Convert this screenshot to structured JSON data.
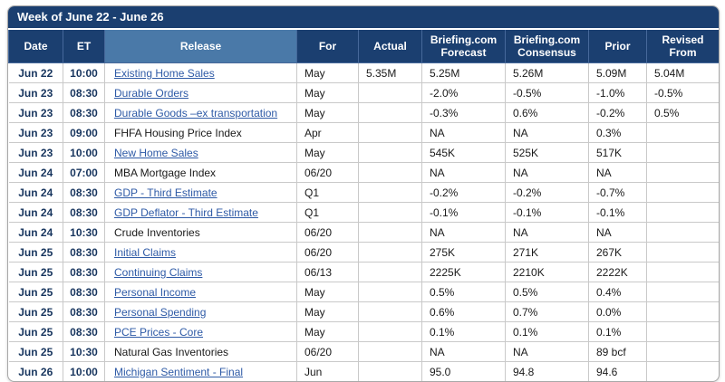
{
  "header": {
    "title": "Week of June 22 - June 26"
  },
  "columns": [
    "Date",
    "ET",
    "Release",
    "For",
    "Actual",
    "Briefing.com Forecast",
    "Briefing.com Consensus",
    "Prior",
    "Revised From"
  ],
  "rows": [
    {
      "date": "Jun 22",
      "et": "10:00",
      "release": "Existing Home Sales",
      "is_link": true,
      "for": "May",
      "actual": "5.35M",
      "forecast": "5.25M",
      "consensus": "5.26M",
      "prior": "5.09M",
      "revised_from": "5.04M"
    },
    {
      "date": "Jun 23",
      "et": "08:30",
      "release": "Durable Orders",
      "is_link": true,
      "for": "May",
      "actual": "",
      "forecast": "-2.0%",
      "consensus": "-0.5%",
      "prior": "-1.0%",
      "revised_from": "-0.5%"
    },
    {
      "date": "Jun 23",
      "et": "08:30",
      "release": "Durable Goods –ex transportation",
      "is_link": true,
      "for": "May",
      "actual": "",
      "forecast": "-0.3%",
      "consensus": "0.6%",
      "prior": "-0.2%",
      "revised_from": "0.5%"
    },
    {
      "date": "Jun 23",
      "et": "09:00",
      "release": "FHFA Housing Price Index",
      "is_link": false,
      "for": "Apr",
      "actual": "",
      "forecast": "NA",
      "consensus": "NA",
      "prior": "0.3%",
      "revised_from": ""
    },
    {
      "date": "Jun 23",
      "et": "10:00",
      "release": "New Home Sales",
      "is_link": true,
      "for": "May",
      "actual": "",
      "forecast": "545K",
      "consensus": "525K",
      "prior": "517K",
      "revised_from": ""
    },
    {
      "date": "Jun 24",
      "et": "07:00",
      "release": "MBA Mortgage Index",
      "is_link": false,
      "for": "06/20",
      "actual": "",
      "forecast": "NA",
      "consensus": "NA",
      "prior": "NA",
      "revised_from": ""
    },
    {
      "date": "Jun 24",
      "et": "08:30",
      "release": "GDP - Third Estimate",
      "is_link": true,
      "for": "Q1",
      "actual": "",
      "forecast": "-0.2%",
      "consensus": "-0.2%",
      "prior": "-0.7%",
      "revised_from": ""
    },
    {
      "date": "Jun 24",
      "et": "08:30",
      "release": "GDP Deflator - Third Estimate",
      "is_link": true,
      "for": "Q1",
      "actual": "",
      "forecast": "-0.1%",
      "consensus": "-0.1%",
      "prior": "-0.1%",
      "revised_from": ""
    },
    {
      "date": "Jun 24",
      "et": "10:30",
      "release": "Crude Inventories",
      "is_link": false,
      "for": "06/20",
      "actual": "",
      "forecast": "NA",
      "consensus": "NA",
      "prior": "NA",
      "revised_from": ""
    },
    {
      "date": "Jun 25",
      "et": "08:30",
      "release": "Initial Claims",
      "is_link": true,
      "for": "06/20",
      "actual": "",
      "forecast": "275K",
      "consensus": "271K",
      "prior": "267K",
      "revised_from": ""
    },
    {
      "date": "Jun 25",
      "et": "08:30",
      "release": "Continuing Claims",
      "is_link": true,
      "for": "06/13",
      "actual": "",
      "forecast": "2225K",
      "consensus": "2210K",
      "prior": "2222K",
      "revised_from": ""
    },
    {
      "date": "Jun 25",
      "et": "08:30",
      "release": "Personal Income",
      "is_link": true,
      "for": "May",
      "actual": "",
      "forecast": "0.5%",
      "consensus": "0.5%",
      "prior": "0.4%",
      "revised_from": ""
    },
    {
      "date": "Jun 25",
      "et": "08:30",
      "release": "Personal Spending",
      "is_link": true,
      "for": "May",
      "actual": "",
      "forecast": "0.6%",
      "consensus": "0.7%",
      "prior": "0.0%",
      "revised_from": ""
    },
    {
      "date": "Jun 25",
      "et": "08:30",
      "release": "PCE Prices - Core",
      "is_link": true,
      "for": "May",
      "actual": "",
      "forecast": "0.1%",
      "consensus": "0.1%",
      "prior": "0.1%",
      "revised_from": ""
    },
    {
      "date": "Jun 25",
      "et": "10:30",
      "release": "Natural Gas Inventories",
      "is_link": false,
      "for": "06/20",
      "actual": "",
      "forecast": "NA",
      "consensus": "NA",
      "prior": "89 bcf",
      "revised_from": ""
    },
    {
      "date": "Jun 26",
      "et": "10:00",
      "release": "Michigan Sentiment - Final",
      "is_link": true,
      "for": "Jun",
      "actual": "",
      "forecast": "95.0",
      "consensus": "94.8",
      "prior": "94.6",
      "revised_from": ""
    }
  ],
  "colors": {
    "header_bg": "#1b3f70",
    "release_header_bg": "#4a79a8",
    "link": "#2e5aa6",
    "date_text": "#17355e",
    "grid": "#c9c9c9"
  }
}
